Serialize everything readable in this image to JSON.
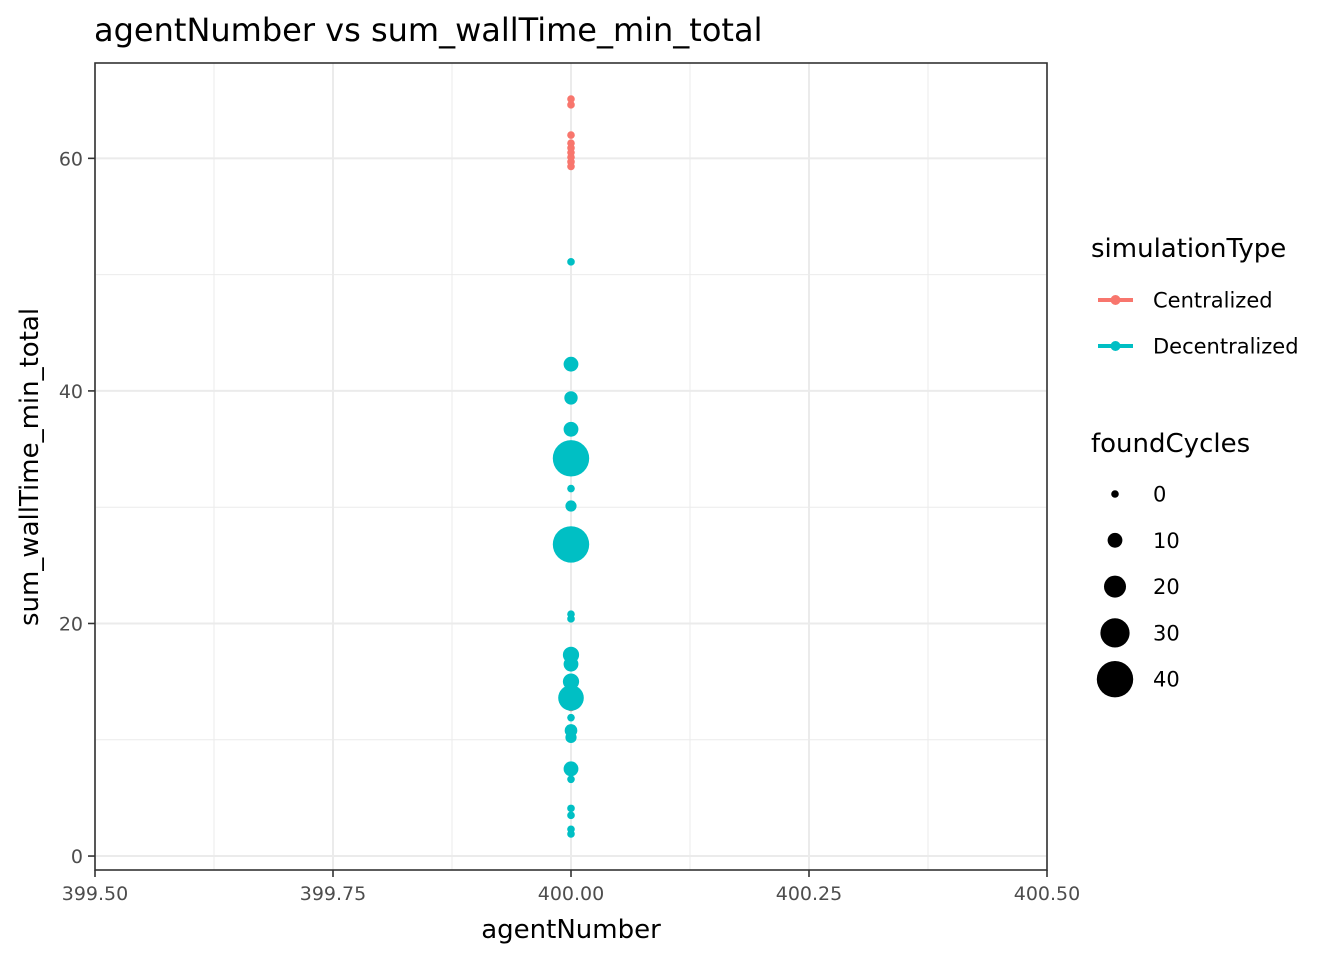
{
  "chart_data": {
    "type": "scatter",
    "title": "agentNumber  vs  sum_wallTime_min_total",
    "xlabel": "agentNumber",
    "ylabel": "sum_wallTime_min_total",
    "xlim": [
      399.5,
      400.5
    ],
    "ylim": [
      -1.2,
      68.2
    ],
    "x_ticks": [
      399.5,
      399.75,
      400.0,
      400.25,
      400.5
    ],
    "x_tick_labels": [
      "399.50",
      "399.75",
      "400.00",
      "400.25",
      "400.50"
    ],
    "y_ticks": [
      0,
      20,
      40,
      60
    ],
    "y_tick_labels": [
      "0",
      "20",
      "40",
      "60"
    ],
    "grid": true,
    "legend_position": "right",
    "color_legend": {
      "title": "simulationType",
      "items": [
        {
          "label": "Centralized",
          "color": "#F8766D"
        },
        {
          "label": "Decentralized",
          "color": "#00BFC4"
        }
      ]
    },
    "size_legend": {
      "title": "foundCycles",
      "items": [
        {
          "label": "0",
          "value": 0
        },
        {
          "label": "10",
          "value": 10
        },
        {
          "label": "20",
          "value": 20
        },
        {
          "label": "30",
          "value": 30
        },
        {
          "label": "40",
          "value": 40
        }
      ]
    },
    "series": [
      {
        "name": "Centralized",
        "color": "#F8766D",
        "points": [
          {
            "x": 400.0,
            "y": 65.1,
            "size": 0
          },
          {
            "x": 400.0,
            "y": 64.6,
            "size": 0
          },
          {
            "x": 400.0,
            "y": 62.0,
            "size": 0
          },
          {
            "x": 400.0,
            "y": 61.3,
            "size": 0
          },
          {
            "x": 400.0,
            "y": 60.9,
            "size": 0
          },
          {
            "x": 400.0,
            "y": 60.5,
            "size": 0
          },
          {
            "x": 400.0,
            "y": 60.1,
            "size": 0
          },
          {
            "x": 400.0,
            "y": 59.7,
            "size": 0
          },
          {
            "x": 400.0,
            "y": 59.3,
            "size": 0
          },
          {
            "x": 400.0,
            "y": 16.8,
            "size": 2
          },
          {
            "x": 400.0,
            "y": 13.1,
            "size": 1
          },
          {
            "x": 400.0,
            "y": 12.8,
            "size": 1
          }
        ]
      },
      {
        "name": "Decentralized",
        "color": "#00BFC4",
        "points": [
          {
            "x": 400.0,
            "y": 51.1,
            "size": 0
          },
          {
            "x": 400.0,
            "y": 42.3,
            "size": 10
          },
          {
            "x": 400.0,
            "y": 39.4,
            "size": 8
          },
          {
            "x": 400.0,
            "y": 36.7,
            "size": 10
          },
          {
            "x": 400.0,
            "y": 34.2,
            "size": 40
          },
          {
            "x": 400.0,
            "y": 31.6,
            "size": 0
          },
          {
            "x": 400.0,
            "y": 30.1,
            "size": 5
          },
          {
            "x": 400.0,
            "y": 26.8,
            "size": 40
          },
          {
            "x": 400.0,
            "y": 20.8,
            "size": 0
          },
          {
            "x": 400.0,
            "y": 20.4,
            "size": 0
          },
          {
            "x": 400.0,
            "y": 17.3,
            "size": 12
          },
          {
            "x": 400.0,
            "y": 16.5,
            "size": 10
          },
          {
            "x": 400.0,
            "y": 15.0,
            "size": 12
          },
          {
            "x": 400.0,
            "y": 13.6,
            "size": 25
          },
          {
            "x": 400.0,
            "y": 11.9,
            "size": 0
          },
          {
            "x": 400.0,
            "y": 10.8,
            "size": 7
          },
          {
            "x": 400.0,
            "y": 10.2,
            "size": 5
          },
          {
            "x": 400.0,
            "y": 7.5,
            "size": 10
          },
          {
            "x": 400.0,
            "y": 6.6,
            "size": 0
          },
          {
            "x": 400.0,
            "y": 4.1,
            "size": 0
          },
          {
            "x": 400.0,
            "y": 3.5,
            "size": 0
          },
          {
            "x": 400.0,
            "y": 2.3,
            "size": 0
          },
          {
            "x": 400.0,
            "y": 1.9,
            "size": 0
          }
        ]
      }
    ]
  }
}
